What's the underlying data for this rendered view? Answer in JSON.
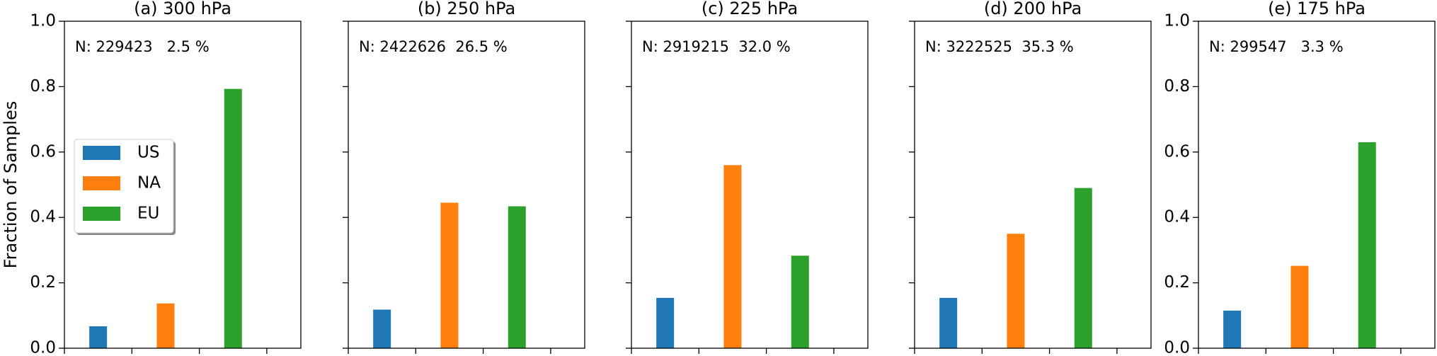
{
  "chart_data": [
    {
      "type": "bar",
      "title": "(a) 300 hPa",
      "annotation": "N: 229423   2.5 %",
      "ylabel": "Fraction of Samples",
      "legend": "center left",
      "show_ytick_labels": true,
      "ylim": [
        0,
        1
      ],
      "yticks": [
        {
          "value": 0,
          "label": "0.0"
        },
        0.2,
        0.4,
        0.6,
        0.8,
        {
          "value": 1,
          "label": "1.0"
        }
      ],
      "series": [
        {
          "name": "US",
          "color": "#1f77b4",
          "values": [
            0.067
          ]
        },
        {
          "name": "NA",
          "color": "#ff7f0e",
          "values": [
            0.137
          ]
        },
        {
          "name": "EU",
          "color": "#2ca02c",
          "values": [
            0.793
          ]
        }
      ]
    },
    {
      "type": "bar",
      "title": "(b) 250 hPa",
      "annotation": "N: 2422626  26.5 %",
      "show_ytick_labels": false,
      "ylim": [
        0,
        1
      ],
      "yticks": [
        {
          "value": 0,
          "label": "0.0"
        },
        0.2,
        0.4,
        0.6,
        0.8,
        {
          "value": 1,
          "label": "1.0"
        }
      ],
      "series": [
        {
          "name": "US",
          "color": "#1f77b4",
          "values": [
            0.118
          ]
        },
        {
          "name": "NA",
          "color": "#ff7f0e",
          "values": [
            0.445
          ]
        },
        {
          "name": "EU",
          "color": "#2ca02c",
          "values": [
            0.434
          ]
        }
      ]
    },
    {
      "type": "bar",
      "title": "(c) 225 hPa",
      "annotation": "N: 2919215  32.0 %",
      "show_ytick_labels": false,
      "ylim": [
        0,
        1
      ],
      "yticks": [
        {
          "value": 0,
          "label": "0.0"
        },
        0.2,
        0.4,
        0.6,
        0.8,
        {
          "value": 1,
          "label": "1.0"
        }
      ],
      "series": [
        {
          "name": "US",
          "color": "#1f77b4",
          "values": [
            0.154
          ]
        },
        {
          "name": "NA",
          "color": "#ff7f0e",
          "values": [
            0.56
          ]
        },
        {
          "name": "EU",
          "color": "#2ca02c",
          "values": [
            0.283
          ]
        }
      ]
    },
    {
      "type": "bar",
      "title": "(d) 200 hPa",
      "annotation": "N: 3222525  35.3 %",
      "show_ytick_labels": false,
      "ylim": [
        0,
        1
      ],
      "yticks": [
        {
          "value": 0,
          "label": "0.0"
        },
        0.2,
        0.4,
        0.6,
        0.8,
        {
          "value": 1,
          "label": "1.0"
        }
      ],
      "series": [
        {
          "name": "US",
          "color": "#1f77b4",
          "values": [
            0.154
          ]
        },
        {
          "name": "NA",
          "color": "#ff7f0e",
          "values": [
            0.35
          ]
        },
        {
          "name": "EU",
          "color": "#2ca02c",
          "values": [
            0.49
          ]
        }
      ]
    },
    {
      "type": "bar",
      "title": "(e) 175 hPa",
      "annotation": "N: 299547   3.3 %",
      "show_ytick_labels": true,
      "ylim": [
        0,
        1
      ],
      "yticks": [
        {
          "value": 0,
          "label": "0.0"
        },
        0.2,
        0.4,
        0.6,
        0.8,
        {
          "value": 1,
          "label": "1.0"
        }
      ],
      "series": [
        {
          "name": "US",
          "color": "#1f77b4",
          "values": [
            0.115
          ]
        },
        {
          "name": "NA",
          "color": "#ff7f0e",
          "values": [
            0.252
          ]
        },
        {
          "name": "EU",
          "color": "#2ca02c",
          "values": [
            0.63
          ]
        }
      ]
    }
  ]
}
